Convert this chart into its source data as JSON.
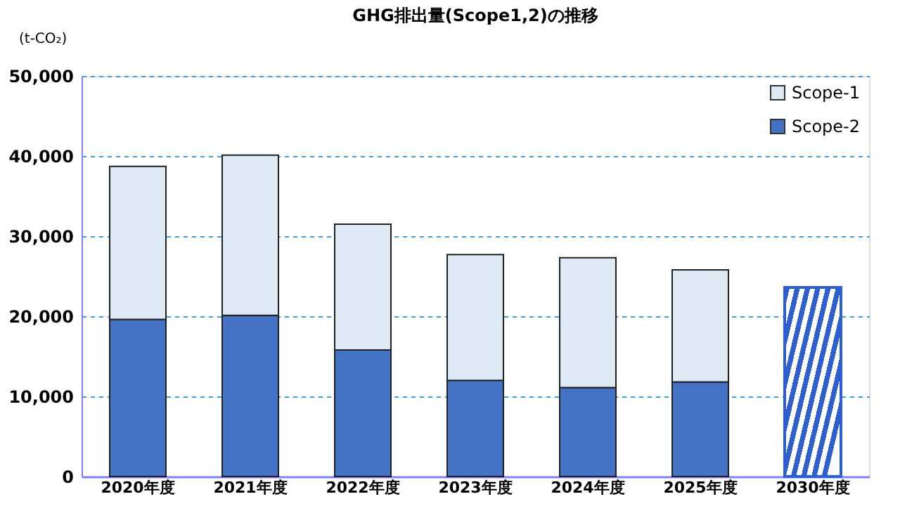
{
  "chart_data": {
    "type": "bar",
    "title": "GHG排出量(Scope1,2)の推移",
    "ylabel": "(t-CO₂)",
    "categories": [
      "2020年度",
      "2021年度",
      "2022年度",
      "2023年度",
      "2024年度",
      "2025年度",
      "2030年度"
    ],
    "stacked": true,
    "ylim": [
      0,
      50000
    ],
    "yticks": [
      0,
      {
        "value": 10000,
        "label": "10,000"
      },
      {
        "value": 20000,
        "label": "20,000"
      },
      {
        "value": 30000,
        "label": "30,000"
      },
      {
        "value": 40000,
        "label": "40,000"
      },
      {
        "value": 50000,
        "label": "50,000"
      }
    ],
    "grid": "y",
    "legend": "top right",
    "series": [
      {
        "name": "Scope-2",
        "color": "#4472c4",
        "values": [
          19600,
          20100,
          15800,
          12000,
          11100,
          11800,
          null
        ]
      },
      {
        "name": "Scope-1",
        "color": "#dde9f5",
        "values": [
          19100,
          20000,
          15700,
          15700,
          16200,
          14000,
          null
        ]
      },
      {
        "color": "#2e5fd0",
        "values": [
          null,
          null,
          null,
          null,
          null,
          null,
          23600
        ]
      }
    ]
  }
}
